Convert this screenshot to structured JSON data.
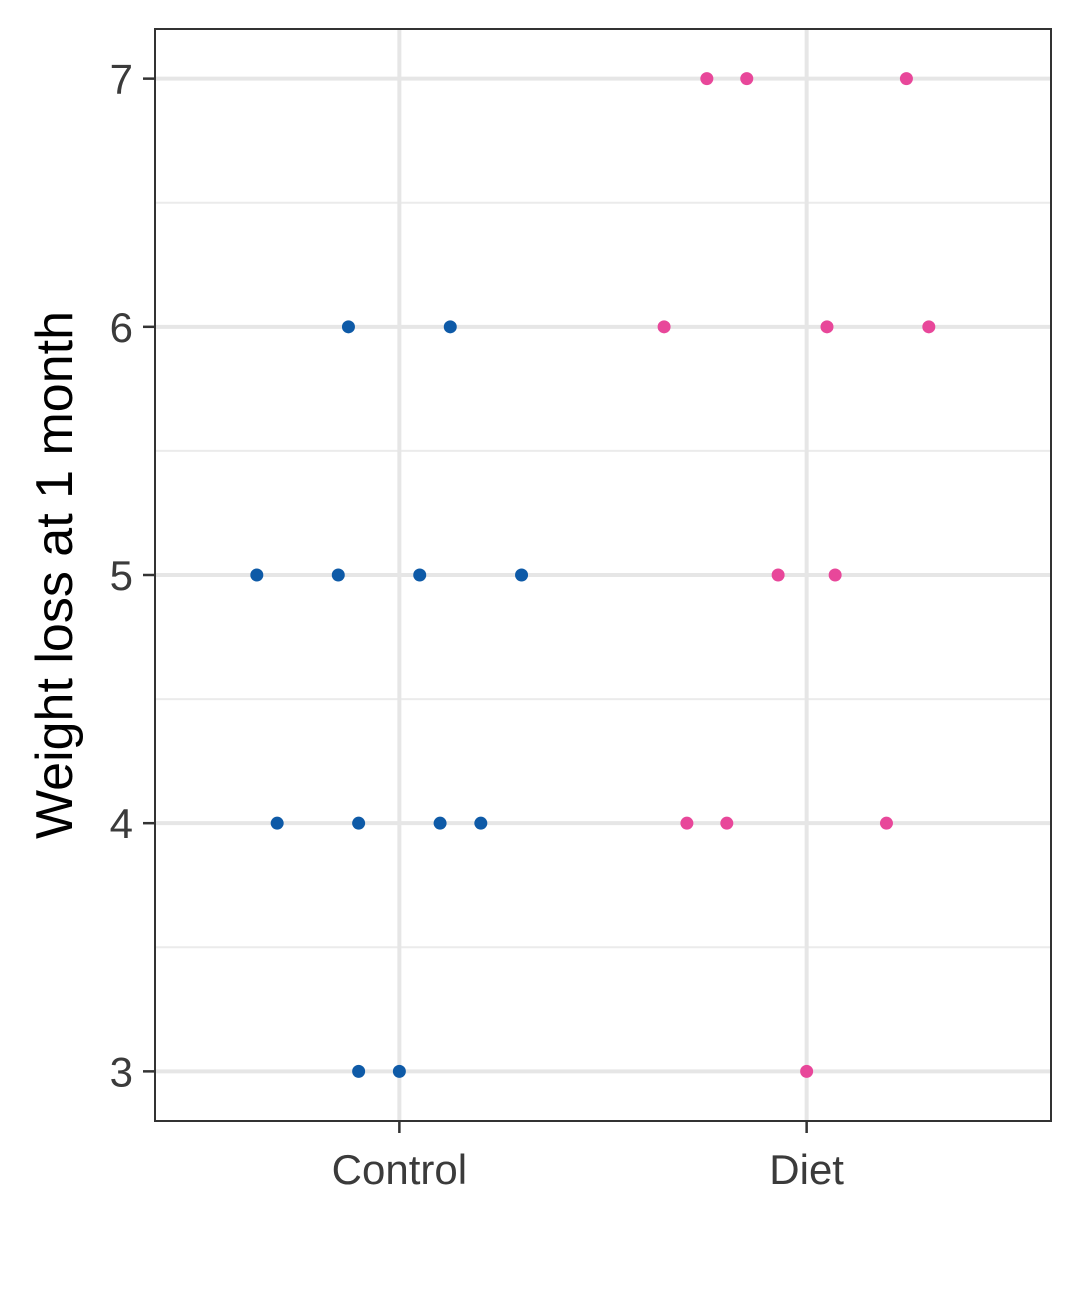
{
  "chart_data": {
    "type": "scatter",
    "ylabel": "Weight loss at 1 month",
    "xlabel": "",
    "categories": [
      "Control",
      "Diet"
    ],
    "ylim": [
      2.8,
      7.2
    ],
    "yticks": [
      3,
      4,
      5,
      6,
      7
    ],
    "grid": true,
    "legend": "none",
    "colors": {
      "Control": "#0e5aa7",
      "Diet": "#e8479a"
    },
    "series": [
      {
        "category": "Control",
        "points": [
          {
            "x": -0.35,
            "y": 5
          },
          {
            "x": -0.15,
            "y": 5
          },
          {
            "x": 0.05,
            "y": 5
          },
          {
            "x": 0.3,
            "y": 5
          },
          {
            "x": -0.125,
            "y": 6
          },
          {
            "x": 0.125,
            "y": 6
          },
          {
            "x": -0.3,
            "y": 4
          },
          {
            "x": -0.1,
            "y": 4
          },
          {
            "x": 0.1,
            "y": 4
          },
          {
            "x": 0.2,
            "y": 4
          },
          {
            "x": -0.1,
            "y": 3
          },
          {
            "x": 0.0,
            "y": 3
          }
        ]
      },
      {
        "category": "Diet",
        "points": [
          {
            "x": -0.245,
            "y": 7
          },
          {
            "x": -0.147,
            "y": 7
          },
          {
            "x": 0.245,
            "y": 7
          },
          {
            "x": -0.35,
            "y": 6
          },
          {
            "x": 0.05,
            "y": 6
          },
          {
            "x": 0.3,
            "y": 6
          },
          {
            "x": -0.07,
            "y": 5
          },
          {
            "x": 0.07,
            "y": 5
          },
          {
            "x": -0.294,
            "y": 4
          },
          {
            "x": -0.196,
            "y": 4
          },
          {
            "x": 0.196,
            "y": 4
          },
          {
            "x": 0.0,
            "y": 3
          }
        ]
      }
    ]
  }
}
